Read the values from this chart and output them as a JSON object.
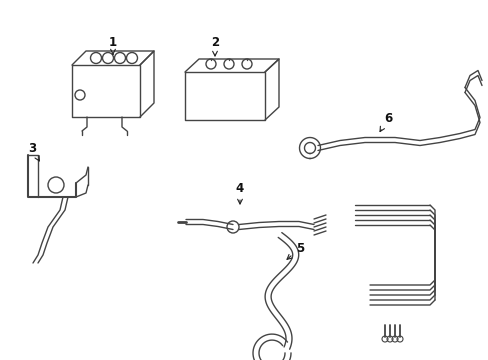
{
  "background_color": "#ffffff",
  "line_color": "#444444",
  "line_width": 1.0,
  "label_color": "#111111",
  "arrow_color": "#222222",
  "fig_width": 4.89,
  "fig_height": 3.6,
  "dpi": 100
}
